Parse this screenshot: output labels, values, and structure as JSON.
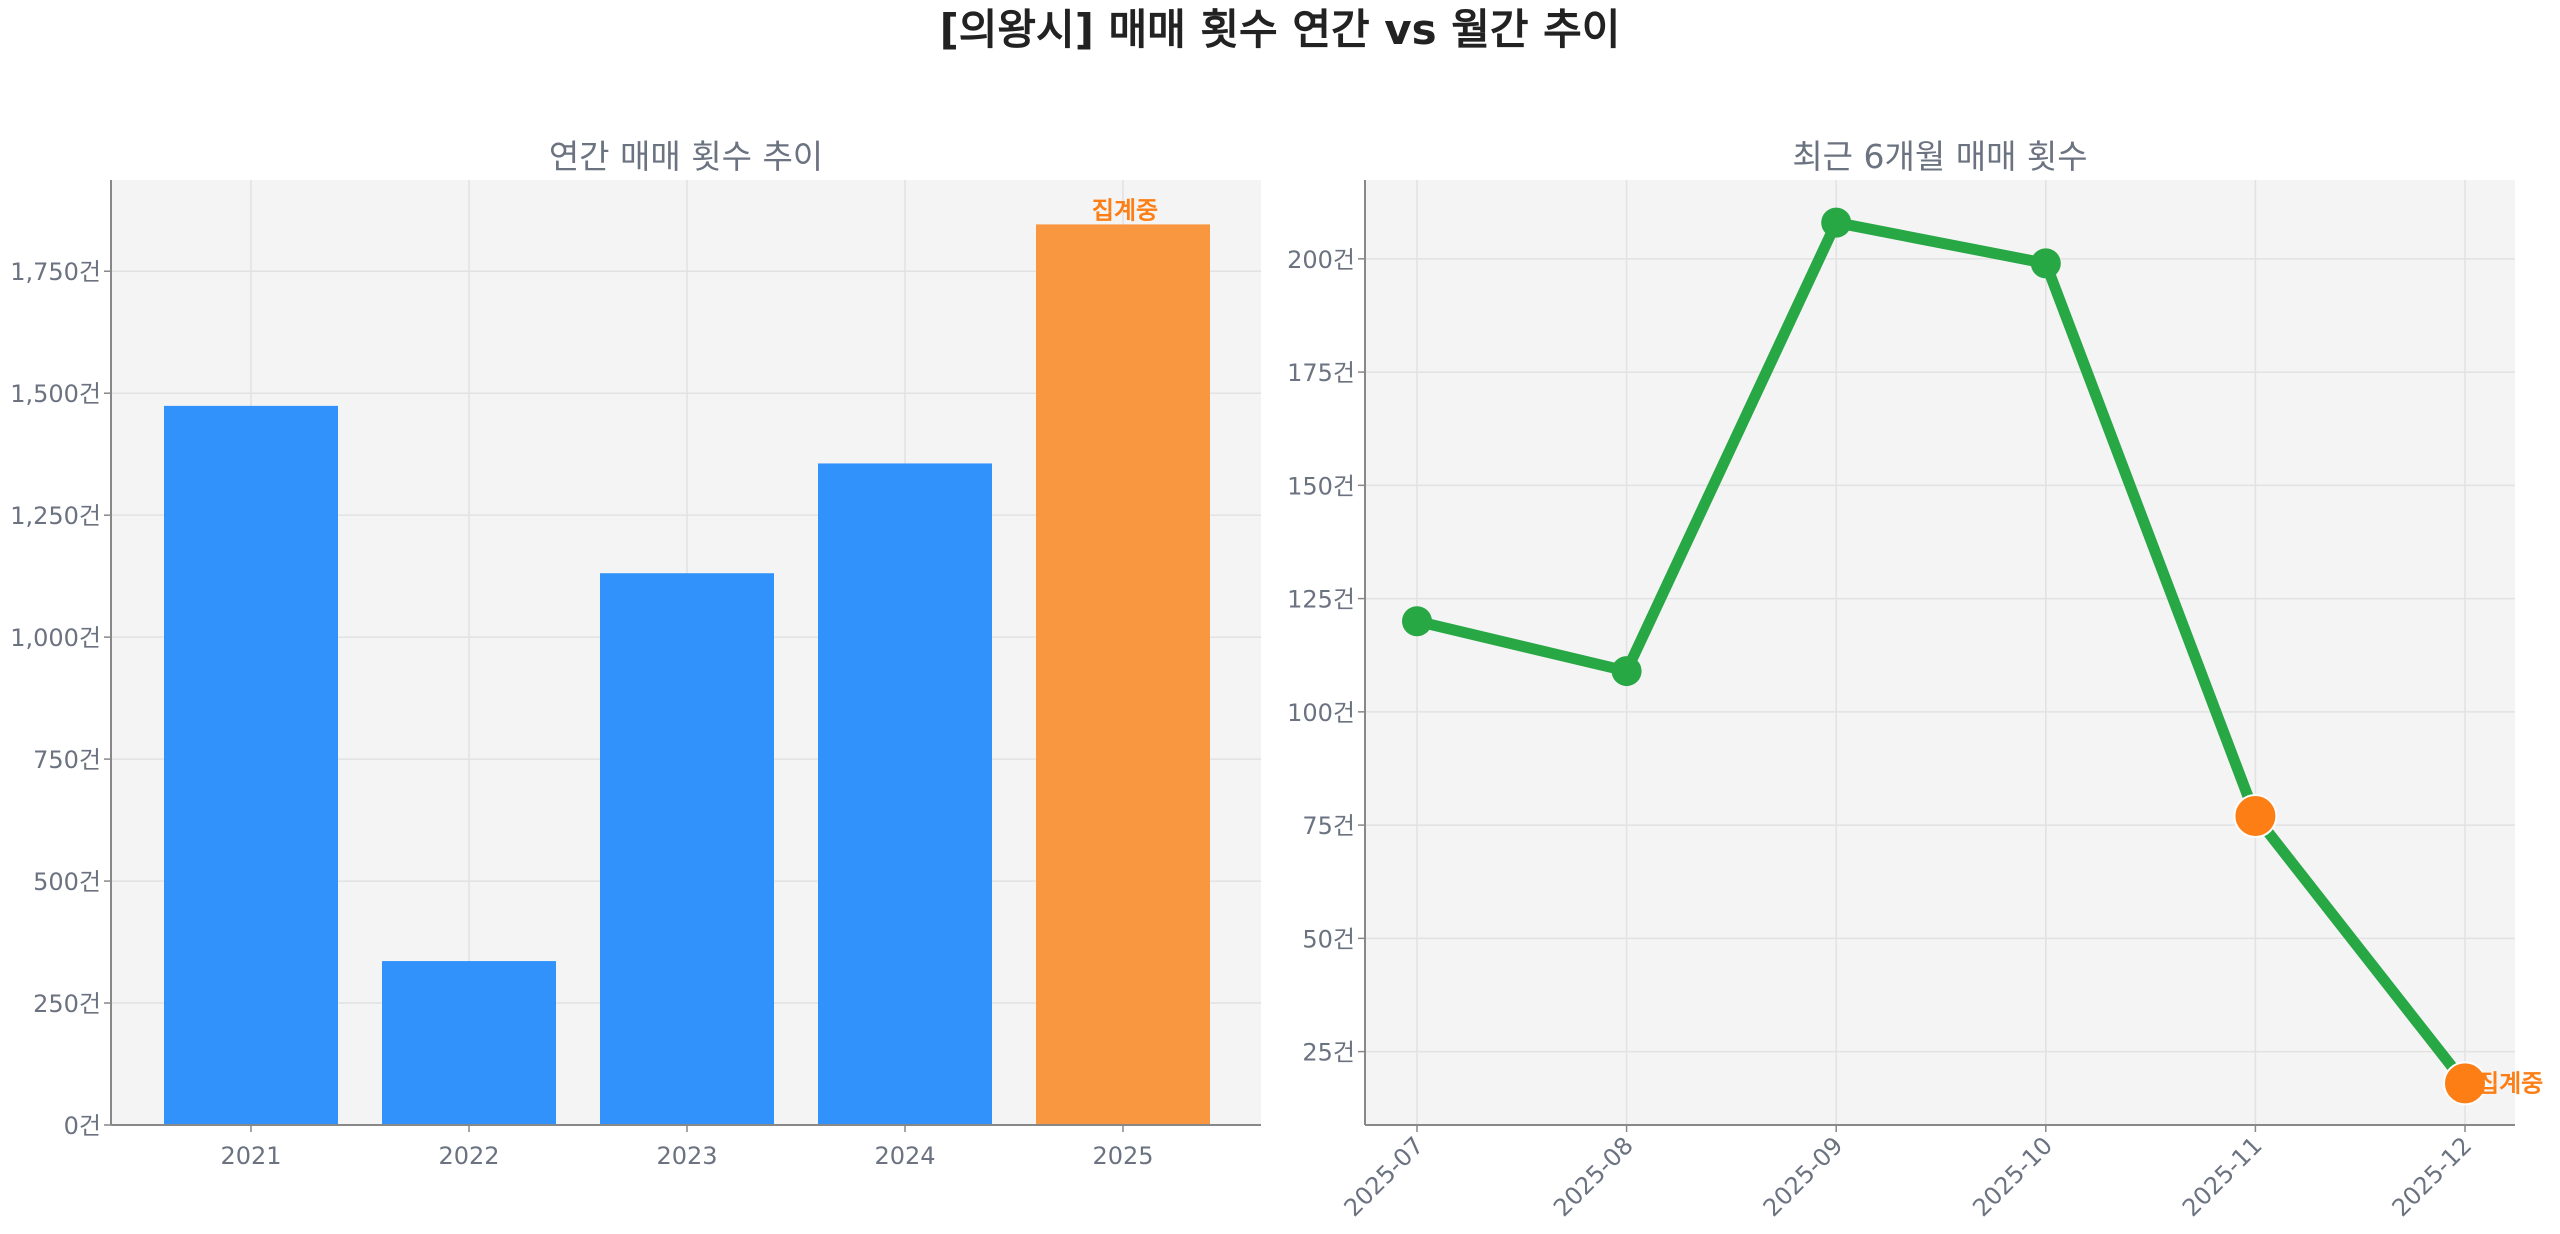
{
  "title": "[의왕시] 매매 횟수 연간 vs 월간 추이",
  "chart_data": [
    {
      "type": "bar",
      "title": "연간 매매 횟수 추이",
      "categories": [
        "2021",
        "2022",
        "2023",
        "2024",
        "2025"
      ],
      "values": [
        1474,
        336,
        1131,
        1356,
        1846
      ],
      "ylim": [
        0,
        1937
      ],
      "yticks": [
        0,
        250,
        500,
        750,
        1000,
        1250,
        1500,
        1750
      ],
      "ytick_labels": [
        "0건",
        "250건",
        "500건",
        "750건",
        "1,000건",
        "1,250건",
        "1,500건",
        "1,750건"
      ],
      "grid": true,
      "colors": [
        "#3092fa",
        "#3092fa",
        "#3092fa",
        "#3092fa",
        "#f89740"
      ],
      "annotation": {
        "category": "2025",
        "text": "집계중",
        "color": "#fd7e14"
      }
    },
    {
      "type": "line",
      "title": "최근 6개월 매매 횟수",
      "x": [
        "2025-07",
        "2025-08",
        "2025-09",
        "2025-10",
        "2025-11",
        "2025-12"
      ],
      "values": [
        120,
        109,
        208,
        199,
        77,
        18
      ],
      "ylim": [
        8.8,
        217.4
      ],
      "yticks": [
        25,
        50,
        75,
        100,
        125,
        150,
        175,
        200
      ],
      "ytick_labels": [
        "25건",
        "50건",
        "75건",
        "100건",
        "125건",
        "150건",
        "175건",
        "200건"
      ],
      "grid": true,
      "line_color": "#28a745",
      "highlight_color": "#fd7e14",
      "highlight_points": [
        "2025-11",
        "2025-12"
      ],
      "annotation": {
        "x": "2025-12",
        "text": "집계중",
        "color": "#fd7e14"
      }
    }
  ]
}
